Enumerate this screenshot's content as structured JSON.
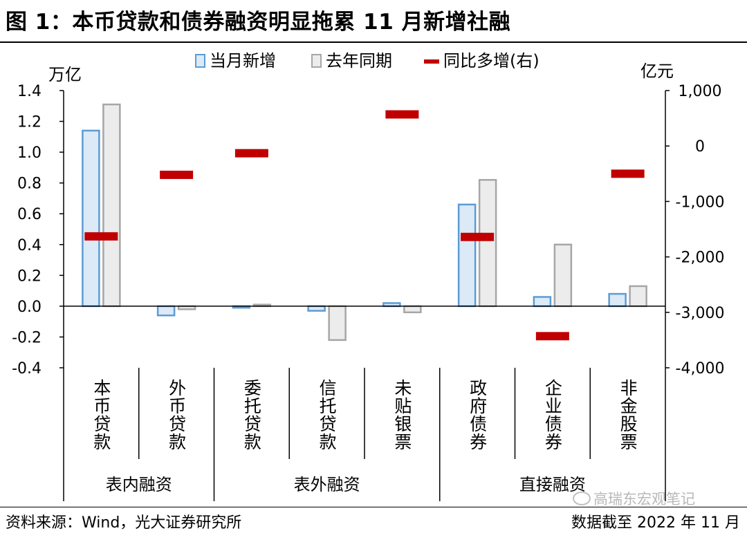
{
  "title": "图 1：本币贷款和债券融资明显拖累 11 月新增社融",
  "footer": {
    "source": "资料来源：Wind，光大证券研究所",
    "date": "数据截至 2022 年 11 月",
    "watermark": "高瑞东宏观笔记"
  },
  "chart_data": {
    "type": "bar",
    "left_unit": "万亿",
    "right_unit": "亿元",
    "categories": [
      "本币贷款",
      "外币贷款",
      "委托贷款",
      "信托贷款",
      "未贴银票",
      "政府债券",
      "企业债券",
      "非金股票"
    ],
    "groups": [
      {
        "label": "表内融资",
        "start": 0,
        "end": 1
      },
      {
        "label": "表外融资",
        "start": 2,
        "end": 4
      },
      {
        "label": "直接融资",
        "start": 5,
        "end": 7
      }
    ],
    "left_axis": {
      "min": -0.4,
      "max": 1.4,
      "ticks": [
        "-0.4",
        "-0.2",
        "0.0",
        "0.2",
        "0.4",
        "0.6",
        "0.8",
        "1.0",
        "1.2",
        "1.4"
      ]
    },
    "right_axis": {
      "min": -4000,
      "max": 1000,
      "ticks": [
        "-4,000",
        "-3,000",
        "-2,000",
        "-1,000",
        "0",
        "1,000"
      ]
    },
    "series": [
      {
        "name": "当月新增",
        "axis": "left",
        "kind": "bar",
        "values": [
          1.14,
          -0.06,
          -0.01,
          -0.03,
          0.02,
          0.66,
          0.06,
          0.08
        ]
      },
      {
        "name": "去年同期",
        "axis": "left",
        "kind": "bar",
        "values": [
          1.31,
          -0.02,
          0.01,
          -0.22,
          -0.04,
          0.82,
          0.4,
          0.13
        ]
      },
      {
        "name": "同比多增(右)",
        "axis": "right",
        "kind": "marker",
        "values": [
          -1630,
          -520,
          -130,
          null,
          570,
          -1640,
          -3430,
          -500
        ]
      }
    ],
    "colors": {
      "current": "#dce9f6",
      "current_border": "#5b9bd5",
      "lastyear": "#ececec",
      "lastyear_border": "#a6a6a6",
      "yoy": "#c00000"
    }
  }
}
